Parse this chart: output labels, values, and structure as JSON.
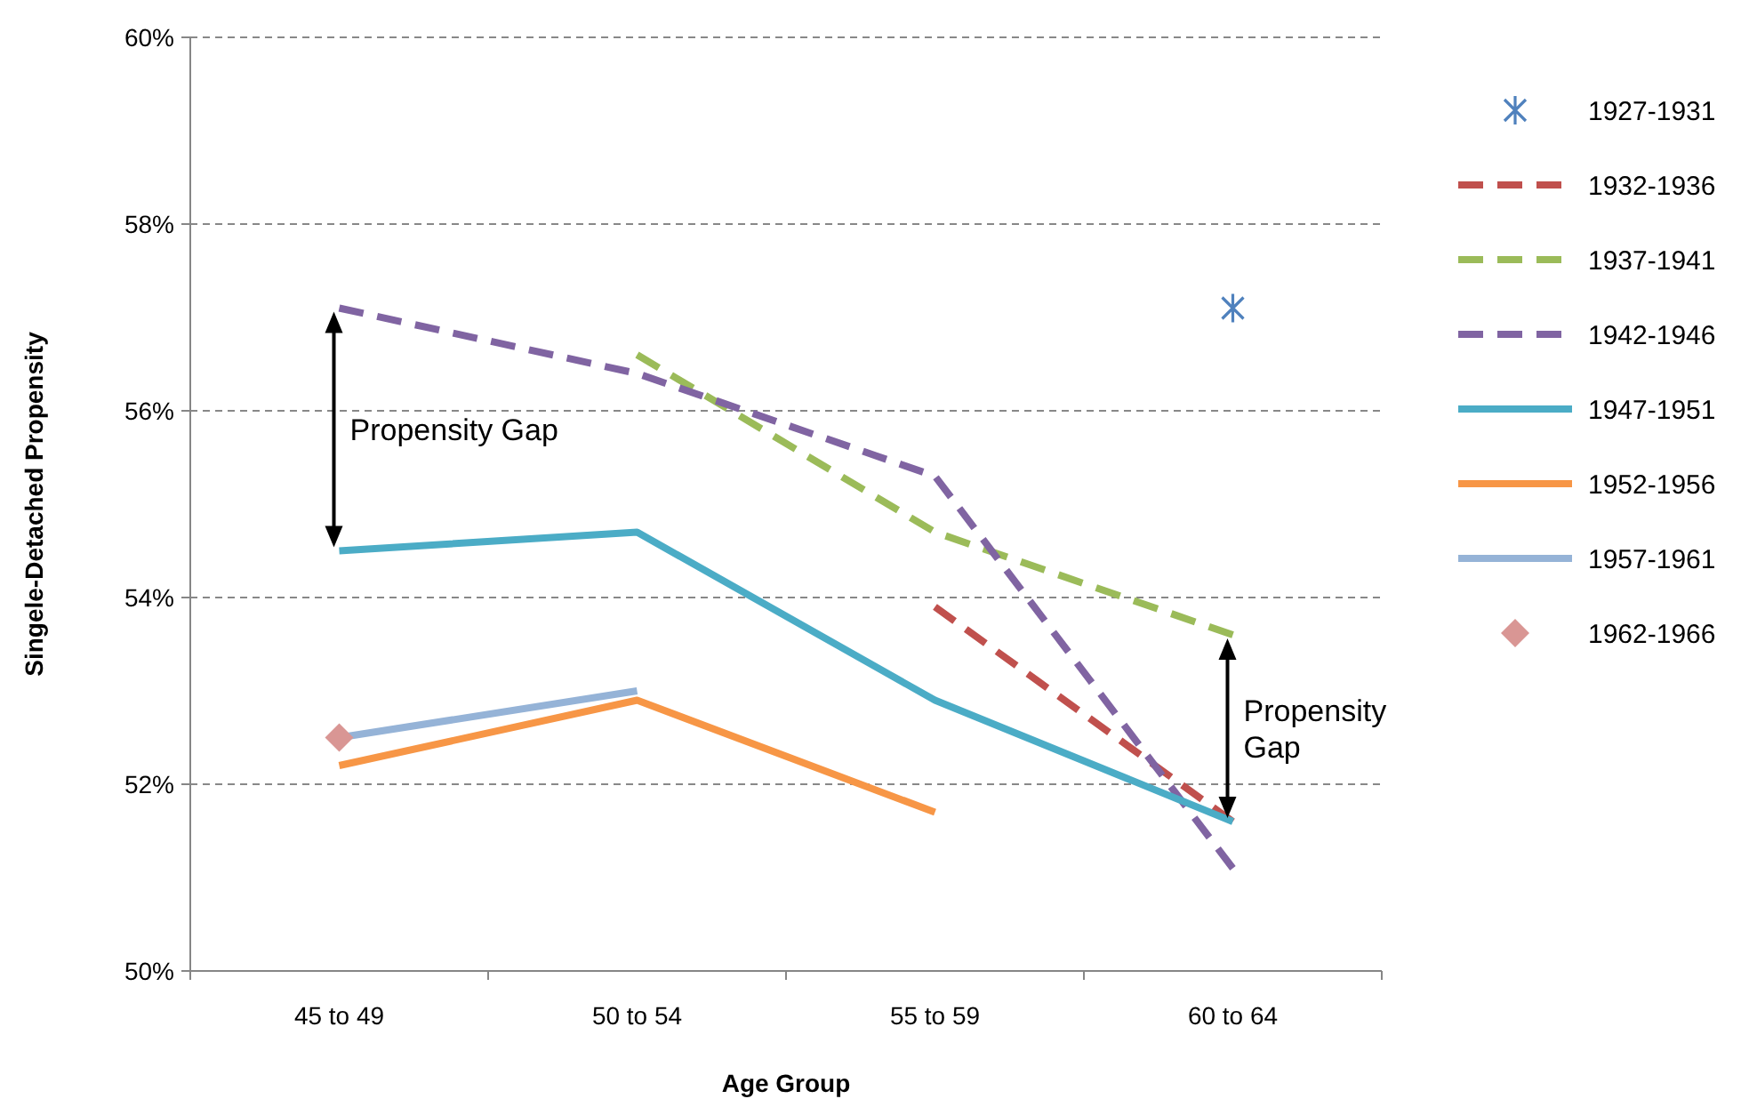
{
  "chart_data": {
    "type": "line",
    "xlabel": "Age Group",
    "ylabel": "Singele-Detached Propensity",
    "categories": [
      "45 to 49",
      "50 to 54",
      "55 to 59",
      "60 to 64"
    ],
    "ylim": [
      50,
      60
    ],
    "yticks": [
      {
        "value": 50,
        "label": "50%"
      },
      {
        "value": 52,
        "label": "52%"
      },
      {
        "value": 54,
        "label": "54%"
      },
      {
        "value": 56,
        "label": "56%"
      },
      {
        "value": 58,
        "label": "58%"
      },
      {
        "value": 60,
        "label": "60%"
      }
    ],
    "grid": "y",
    "legend": "right",
    "series": [
      {
        "name": "1927-1931",
        "type": "scatter",
        "marker": "cross",
        "color": "#4f81bd",
        "values": [
          null,
          null,
          null,
          57.1
        ]
      },
      {
        "name": "1932-1936",
        "line_style": "dashed",
        "color": "#c0504d",
        "values": [
          null,
          null,
          53.9,
          51.6
        ]
      },
      {
        "name": "1937-1941",
        "line_style": "dashed",
        "color": "#9bbb59",
        "values": [
          null,
          56.6,
          54.7,
          53.6
        ]
      },
      {
        "name": "1942-1946",
        "line_style": "dashed",
        "color": "#8064a2",
        "values": [
          57.1,
          56.4,
          55.3,
          51.1
        ]
      },
      {
        "name": "1947-1951",
        "line_style": "solid",
        "color": "#4bacc6",
        "values": [
          54.5,
          54.7,
          52.9,
          51.6
        ]
      },
      {
        "name": "1952-1956",
        "line_style": "solid",
        "color": "#f79646",
        "values": [
          52.2,
          52.9,
          51.7,
          null
        ]
      },
      {
        "name": "1957-1961",
        "line_style": "solid",
        "color": "#95b3d7",
        "values": [
          52.5,
          53.0,
          null,
          null
        ]
      },
      {
        "name": "1962-1966",
        "type": "scatter",
        "marker": "diamond",
        "color": "#d99694",
        "values": [
          52.5,
          null,
          null,
          null
        ]
      }
    ],
    "annotations": [
      "Propensity Gap",
      "Propensity\nGap"
    ]
  }
}
